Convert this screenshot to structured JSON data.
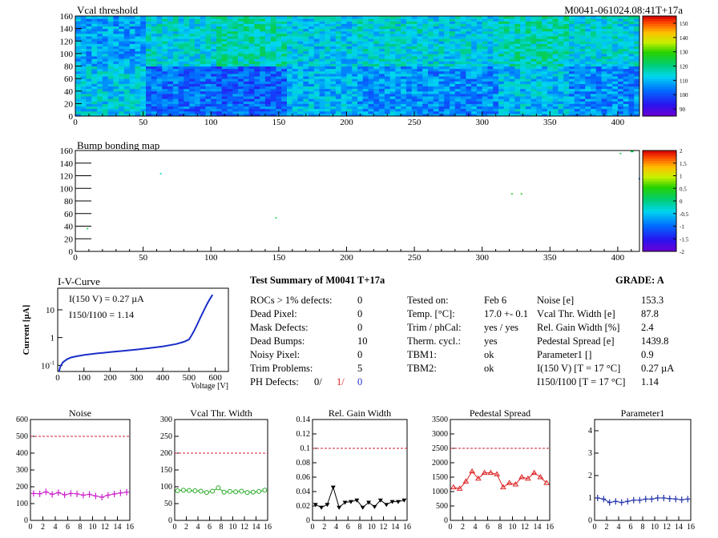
{
  "colors": {
    "threshold_line": "#cc2233",
    "noise": "#cc22cc",
    "vcal": "#22aa22",
    "gain": "#000000",
    "pedestal": "#dd2222",
    "param1": "#2233aa",
    "iv": "#1a2ec8"
  },
  "vcal_map": {
    "title": "Vcal threshold",
    "module_label": "M0041-061024.08:41T+17a"
  },
  "bump_map": {
    "title": "Bump bonding map"
  },
  "iv_curve": {
    "title": "I-V-Curve",
    "ylabel": "Current [µA]",
    "xlabel": "Voltage [V]",
    "annotation1": "I(150 V) = 0.27 µA",
    "annotation2": "I150/I100 = 1.14"
  },
  "summary": {
    "title": "Test Summary of M0041      T+17a",
    "grade": "GRADE:  A",
    "col1": [
      {
        "label": "ROCs > 1% defects:",
        "value": "0"
      },
      {
        "label": "Dead Pixel:",
        "value": "0"
      },
      {
        "label": "Mask Defects:",
        "value": "0"
      },
      {
        "label": "Dead Bumps:",
        "value": "10"
      },
      {
        "label": "Noisy Pixel:",
        "value": "0"
      },
      {
        "label": "Trim Problems:",
        "value": "5"
      }
    ],
    "ph_label": "PH Defects:",
    "ph_values": [
      "0/",
      "1/",
      "0"
    ],
    "col2": [
      {
        "label": "Tested on:",
        "value": "Feb 6"
      },
      {
        "label": "Temp. [°C]:",
        "value": "17.0 +- 0.1"
      },
      {
        "label": "Trim / phCal:",
        "value": "yes / yes"
      },
      {
        "label": "Therm. cycl.:",
        "value": "yes"
      },
      {
        "label": "TBM1:",
        "value": "ok"
      },
      {
        "label": "TBM2:",
        "value": "ok"
      }
    ],
    "col3": [
      {
        "label": "Noise [e]",
        "value": "153.3"
      },
      {
        "label": "Vcal Thr. Width [e]",
        "value": "87.8"
      },
      {
        "label": "Rel. Gain Width [%]",
        "value": "2.4"
      },
      {
        "label": "Pedestal Spread [e]",
        "value": "1439.8"
      },
      {
        "label": "Parameter1 []",
        "value": "0.9"
      },
      {
        "label": "I(150 V) [T = 17 °C]",
        "value": "0.27 µA"
      },
      {
        "label": "I150/I100  [T = 17 °C]",
        "value": "1.14"
      }
    ]
  },
  "chart_data": [
    {
      "type": "heatmap",
      "title": "Vcal threshold",
      "x_range": [
        0,
        416
      ],
      "y_range": [
        0,
        160
      ],
      "x_ticks": [
        0,
        50,
        100,
        150,
        200,
        250,
        300,
        350,
        400
      ],
      "y_ticks": [
        0,
        20,
        40,
        60,
        80,
        100,
        120,
        140,
        160
      ],
      "z_range": [
        85,
        155
      ],
      "palette_ticks": [
        90,
        100,
        110,
        120,
        130,
        140,
        150
      ],
      "roc_mean": [
        [
          108,
          114,
          117,
          112,
          114,
          113,
          117,
          114
        ],
        [
          112,
          103,
          102,
          110,
          107,
          106,
          111,
          106
        ]
      ]
    },
    {
      "type": "scatter",
      "title": "Bump bonding map",
      "x_range": [
        0,
        416
      ],
      "y_range": [
        0,
        160
      ],
      "x_ticks": [
        0,
        50,
        100,
        150,
        200,
        250,
        300,
        350,
        400
      ],
      "y_ticks": [
        0,
        20,
        40,
        60,
        80,
        100,
        120,
        140,
        160
      ],
      "z_range": [
        -2,
        2
      ],
      "palette_ticks": [
        -2,
        -1.5,
        -1,
        -0.5,
        0,
        0.5,
        1,
        1.5,
        2
      ],
      "points": [
        [
          63,
          123
        ],
        [
          148,
          53
        ],
        [
          322,
          91
        ],
        [
          329,
          91
        ],
        [
          402,
          155
        ],
        [
          9,
          36
        ],
        [
          416,
          115
        ],
        [
          410,
          158
        ],
        [
          411,
          158
        ],
        [
          411,
          159
        ]
      ]
    },
    {
      "type": "line",
      "title": "I-V-Curve",
      "xlabel": "Voltage [V]",
      "ylabel": "Current [µA]",
      "x_range": [
        0,
        650
      ],
      "y_range": [
        0.06,
        60
      ],
      "y_scale": "log",
      "x_ticks": [
        0,
        100,
        200,
        300,
        400,
        500,
        600
      ],
      "y_ticks": [
        0.1,
        1,
        10
      ],
      "x": [
        5,
        10,
        20,
        35,
        50,
        70,
        100,
        150,
        200,
        250,
        300,
        350,
        400,
        450,
        480,
        500,
        510,
        520,
        530,
        540,
        550,
        560,
        570,
        580,
        590
      ],
      "y": [
        0.06,
        0.09,
        0.13,
        0.165,
        0.19,
        0.21,
        0.235,
        0.27,
        0.3,
        0.33,
        0.37,
        0.42,
        0.48,
        0.58,
        0.7,
        0.85,
        1.2,
        1.8,
        2.8,
        4.5,
        7,
        11,
        17,
        25,
        35
      ]
    },
    {
      "type": "line",
      "title": "Noise",
      "x_range": [
        0,
        16
      ],
      "y_range": [
        0,
        600
      ],
      "x_ticks": [
        0,
        2,
        4,
        6,
        8,
        10,
        12,
        14,
        16
      ],
      "y_ticks": [
        0,
        100,
        200,
        300,
        400,
        500,
        600
      ],
      "threshold": 500,
      "marker": "plus",
      "color": "#cc22cc",
      "x": [
        0.5,
        1.5,
        2.5,
        3.5,
        4.5,
        5.5,
        6.5,
        7.5,
        8.5,
        9.5,
        10.5,
        11.5,
        12.5,
        13.5,
        14.5,
        15.5
      ],
      "values": [
        160,
        158,
        170,
        155,
        165,
        152,
        160,
        158,
        150,
        155,
        145,
        138,
        150,
        157,
        163,
        168
      ]
    },
    {
      "type": "line",
      "title": "Vcal Thr. Width",
      "x_range": [
        0,
        16
      ],
      "y_range": [
        0,
        300
      ],
      "x_ticks": [
        0,
        2,
        4,
        6,
        8,
        10,
        12,
        14,
        16
      ],
      "y_ticks": [
        0,
        50,
        100,
        150,
        200,
        250,
        300
      ],
      "threshold": 200,
      "marker": "circle",
      "color": "#22aa22",
      "x": [
        0.5,
        1.5,
        2.5,
        3.5,
        4.5,
        5.5,
        6.5,
        7.5,
        8.5,
        9.5,
        10.5,
        11.5,
        12.5,
        13.5,
        14.5,
        15.5
      ],
      "values": [
        88,
        90,
        89,
        88,
        87,
        83,
        87,
        97,
        84,
        86,
        85,
        87,
        83,
        84,
        86,
        90
      ]
    },
    {
      "type": "line",
      "title": "Rel. Gain Width",
      "x_range": [
        0,
        16
      ],
      "y_range": [
        0,
        0.14
      ],
      "x_ticks": [
        0,
        2,
        4,
        6,
        8,
        10,
        12,
        14,
        16
      ],
      "y_ticks": [
        0,
        0.02,
        0.04,
        0.06,
        0.08,
        0.1,
        0.12,
        0.14
      ],
      "threshold": 0.1,
      "marker": "triangle-down",
      "color": "#000000",
      "x": [
        0.5,
        1.5,
        2.5,
        3.5,
        4.5,
        5.5,
        6.5,
        7.5,
        8.5,
        9.5,
        10.5,
        11.5,
        12.5,
        13.5,
        14.5,
        15.5
      ],
      "values": [
        0.022,
        0.018,
        0.022,
        0.046,
        0.018,
        0.025,
        0.026,
        0.028,
        0.018,
        0.025,
        0.019,
        0.028,
        0.022,
        0.026,
        0.026,
        0.028
      ]
    },
    {
      "type": "line",
      "title": "Pedestal Spread",
      "x_range": [
        0,
        16
      ],
      "y_range": [
        0,
        3500
      ],
      "x_ticks": [
        0,
        2,
        4,
        6,
        8,
        10,
        12,
        14,
        16
      ],
      "y_ticks": [
        0,
        500,
        1000,
        1500,
        2000,
        2500,
        3000,
        3500
      ],
      "threshold": 2500,
      "marker": "triangle-up",
      "color": "#dd2222",
      "x": [
        0.5,
        1.5,
        2.5,
        3.5,
        4.5,
        5.5,
        6.5,
        7.5,
        8.5,
        9.5,
        10.5,
        11.5,
        12.5,
        13.5,
        14.5,
        15.5
      ],
      "values": [
        1150,
        1100,
        1350,
        1700,
        1450,
        1650,
        1650,
        1600,
        1150,
        1300,
        1250,
        1500,
        1450,
        1650,
        1500,
        1300
      ]
    },
    {
      "type": "line",
      "title": "Parameter1",
      "x_range": [
        0,
        16
      ],
      "y_range": [
        0,
        4.5
      ],
      "x_ticks": [
        0,
        2,
        4,
        6,
        8,
        10,
        12,
        14,
        16
      ],
      "y_ticks": [
        0,
        1,
        2,
        3,
        4
      ],
      "marker": "plus",
      "color": "#2233aa",
      "x": [
        0.5,
        1.5,
        2.5,
        3.5,
        4.5,
        5.5,
        6.5,
        7.5,
        8.5,
        9.5,
        10.5,
        11.5,
        12.5,
        13.5,
        14.5,
        15.5
      ],
      "values": [
        1.0,
        0.95,
        0.8,
        0.85,
        0.8,
        0.85,
        0.9,
        0.9,
        0.95,
        0.95,
        1.0,
        1.0,
        0.97,
        0.95,
        0.92,
        0.95
      ]
    }
  ]
}
